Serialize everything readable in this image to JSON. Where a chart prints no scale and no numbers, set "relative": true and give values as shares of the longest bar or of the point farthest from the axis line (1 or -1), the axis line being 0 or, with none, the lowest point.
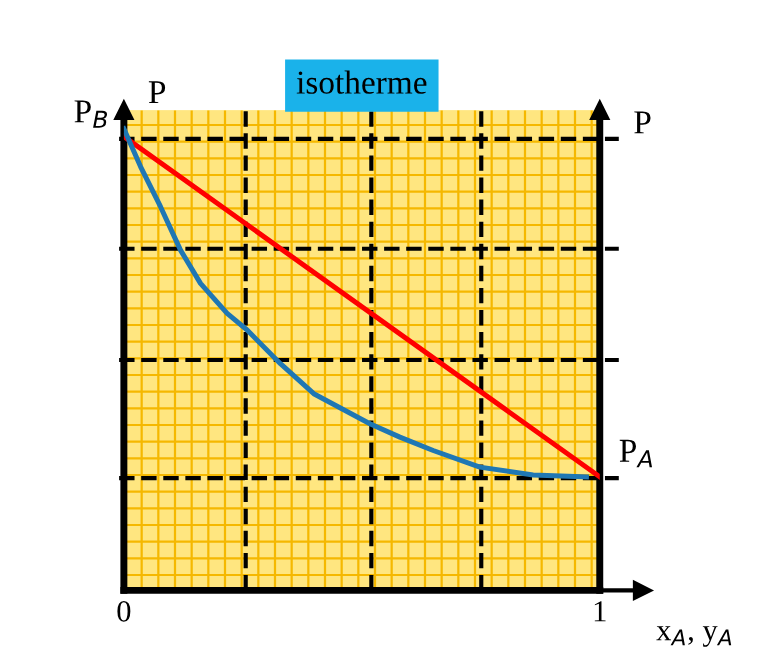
{
  "chart_data": {
    "type": "line",
    "title": "isotherme",
    "xlabel": "x$_{A}$, y$_{A}$",
    "ylabel": "P",
    "y2label": "P",
    "relative": true,
    "xlim": [
      0,
      1
    ],
    "xticks": [
      0,
      1
    ],
    "legend": false,
    "marker": "none",
    "line_style": "solid",
    "series": [
      {
        "color": "#ff0000",
        "x": [
          0,
          1
        ],
        "values": [
          0.983,
          0.246
        ]
      },
      {
        "color": "#1f77b4",
        "x": [
          0,
          0.035,
          0.077,
          0.119,
          0.161,
          0.217,
          0.259,
          0.329,
          0.399,
          0.517,
          0.58,
          0.65,
          0.748,
          0.86,
          0.972
        ],
        "values": [
          1.0,
          0.918,
          0.831,
          0.737,
          0.665,
          0.6,
          0.564,
          0.491,
          0.426,
          0.361,
          0.332,
          0.303,
          0.267,
          0.25,
          0.246
        ]
      }
    ],
    "ref_lines": [
      {
        "axis": "y",
        "value": 0.978,
        "label": "P$_{B}$",
        "color": "#000000",
        "line_style": "dashed"
      },
      {
        "axis": "y",
        "value": 0.74,
        "label": null,
        "color": "#000000",
        "line_style": "dashed"
      },
      {
        "axis": "y",
        "value": 0.499,
        "label": null,
        "color": "#000000",
        "line_style": "dashed"
      },
      {
        "axis": "y",
        "value": 0.243,
        "label": "P$_{A}$",
        "color": "#000000",
        "line_style": "dashed"
      },
      {
        "axis": "x",
        "value": 0.256,
        "label": null,
        "color": "#000000",
        "line_style": "dashed"
      },
      {
        "axis": "x",
        "value": 0.52,
        "label": null,
        "color": "#000000",
        "line_style": "dashed"
      },
      {
        "axis": "x",
        "value": 0.751,
        "label": null,
        "color": "#000000",
        "line_style": "dashed"
      }
    ]
  }
}
